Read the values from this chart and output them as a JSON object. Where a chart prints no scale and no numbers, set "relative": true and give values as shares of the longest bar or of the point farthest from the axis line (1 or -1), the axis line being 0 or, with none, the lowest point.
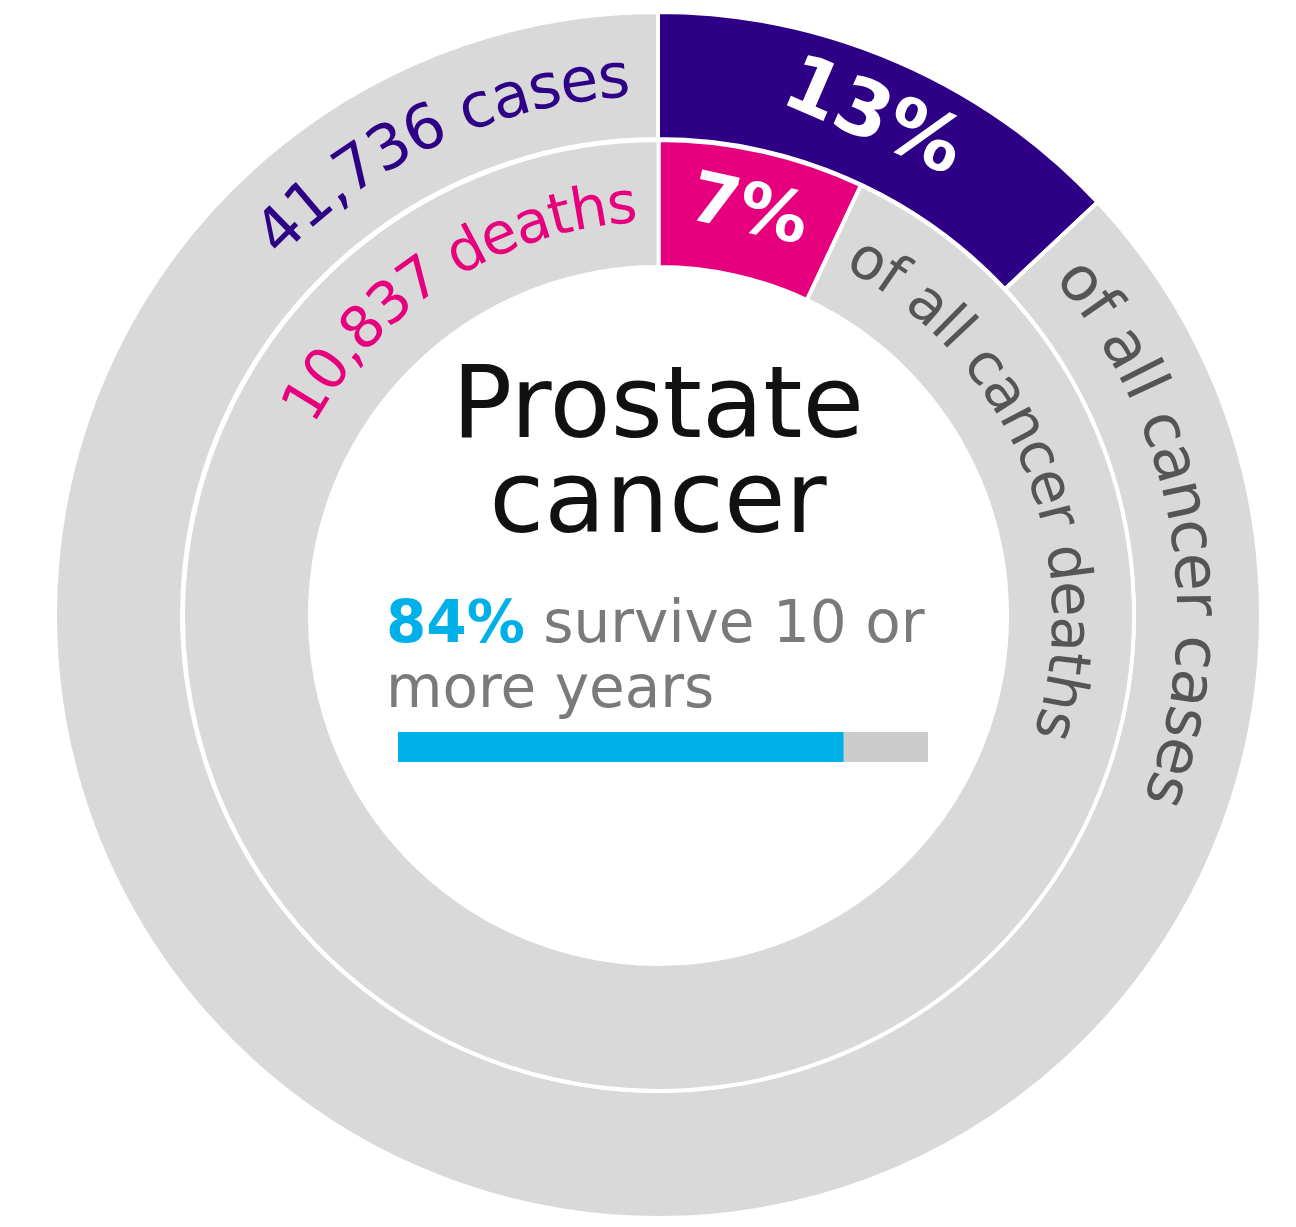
{
  "chart_data": [
    {
      "type": "donut",
      "title": "Prostate cancer",
      "annotations": [
        "41,736 cases",
        "of all cancer cases"
      ],
      "values": [
        13,
        87
      ],
      "colors": [
        "#2e0085",
        "#d9d9d9"
      ],
      "value_labels": [
        "13%",
        null
      ]
    },
    {
      "type": "donut",
      "annotations": [
        "10,837 deaths",
        "of all cancer deaths"
      ],
      "values": [
        7,
        93
      ],
      "colors": [
        "#e6007e",
        "#d9d9d9"
      ],
      "value_labels": [
        "7%",
        null
      ]
    },
    {
      "type": "bar",
      "title": "84% survive 10 or more years",
      "orientation": "horizontal",
      "stacked": true,
      "relative": true,
      "categories": [
        null
      ],
      "tick_labels": false,
      "series": [
        {
          "color": "#00b0e8",
          "values": [
            0.84
          ]
        },
        {
          "color": "#cccccc",
          "values": [
            0.16
          ]
        }
      ]
    }
  ]
}
